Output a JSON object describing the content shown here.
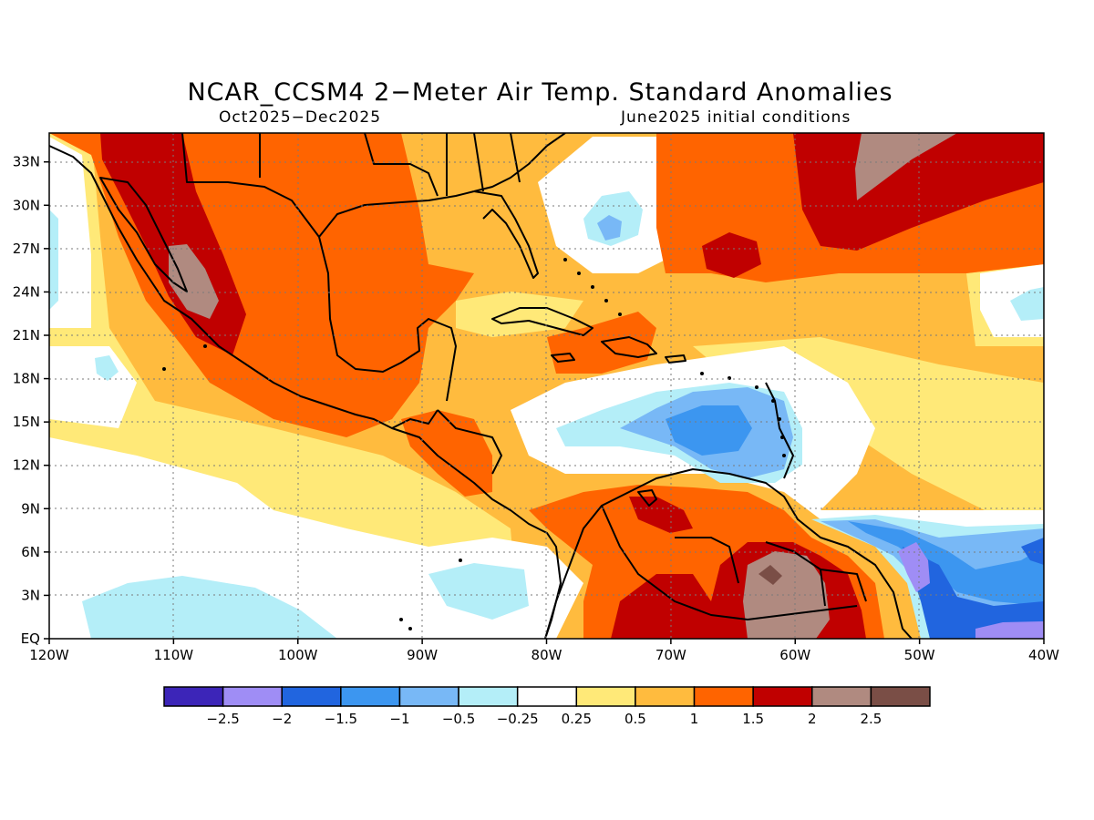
{
  "title": "NCAR_CCSM4 2−Meter Air Temp. Standard Anomalies",
  "subtitle_left": "Oct2025−Dec2025",
  "subtitle_right": "June2025 initial conditions",
  "map_extent": {
    "lon_min": -120,
    "lon_max": -40,
    "lat_min": 0,
    "lat_max": 35
  },
  "lat_ticks": [
    {
      "value": 33,
      "label": "33N"
    },
    {
      "value": 30,
      "label": "30N"
    },
    {
      "value": 27,
      "label": "27N"
    },
    {
      "value": 24,
      "label": "24N"
    },
    {
      "value": 21,
      "label": "21N"
    },
    {
      "value": 18,
      "label": "18N"
    },
    {
      "value": 15,
      "label": "15N"
    },
    {
      "value": 12,
      "label": "12N"
    },
    {
      "value": 9,
      "label": "9N"
    },
    {
      "value": 6,
      "label": "6N"
    },
    {
      "value": 3,
      "label": "3N"
    },
    {
      "value": 0,
      "label": "EQ"
    }
  ],
  "lon_ticks": [
    {
      "value": -120,
      "label": "120W"
    },
    {
      "value": -110,
      "label": "110W"
    },
    {
      "value": -100,
      "label": "100W"
    },
    {
      "value": -90,
      "label": "90W"
    },
    {
      "value": -80,
      "label": "80W"
    },
    {
      "value": -70,
      "label": "70W"
    },
    {
      "value": -60,
      "label": "60W"
    },
    {
      "value": -50,
      "label": "50W"
    },
    {
      "value": -40,
      "label": "40W"
    }
  ],
  "colorbar": {
    "colors": [
      "#3c25b8",
      "#9f8df5",
      "#2165df",
      "#3c96f0",
      "#78b8f6",
      "#b4eef8",
      "#ffffff",
      "#ffe978",
      "#ffbb3e",
      "#ff6400",
      "#c00000",
      "#b08a80",
      "#7a4e46"
    ],
    "labels": [
      "−2.5",
      "−2",
      "−1.5",
      "−1",
      "−0.5",
      "−0.25",
      "0.25",
      "0.5",
      "1",
      "1.5",
      "2",
      "2.5"
    ]
  },
  "colors": {
    "neg_025": "#b4eef8",
    "neg_05": "#78b8f6",
    "neg_1": "#3c96f0",
    "neg_15": "#2165df",
    "neg_2": "#9f8df5",
    "pos_025": "#ffe978",
    "pos_05": "#ffbb3e",
    "pos_1": "#ff6400",
    "pos_15": "#c00000",
    "pos_2": "#b08a80"
  }
}
